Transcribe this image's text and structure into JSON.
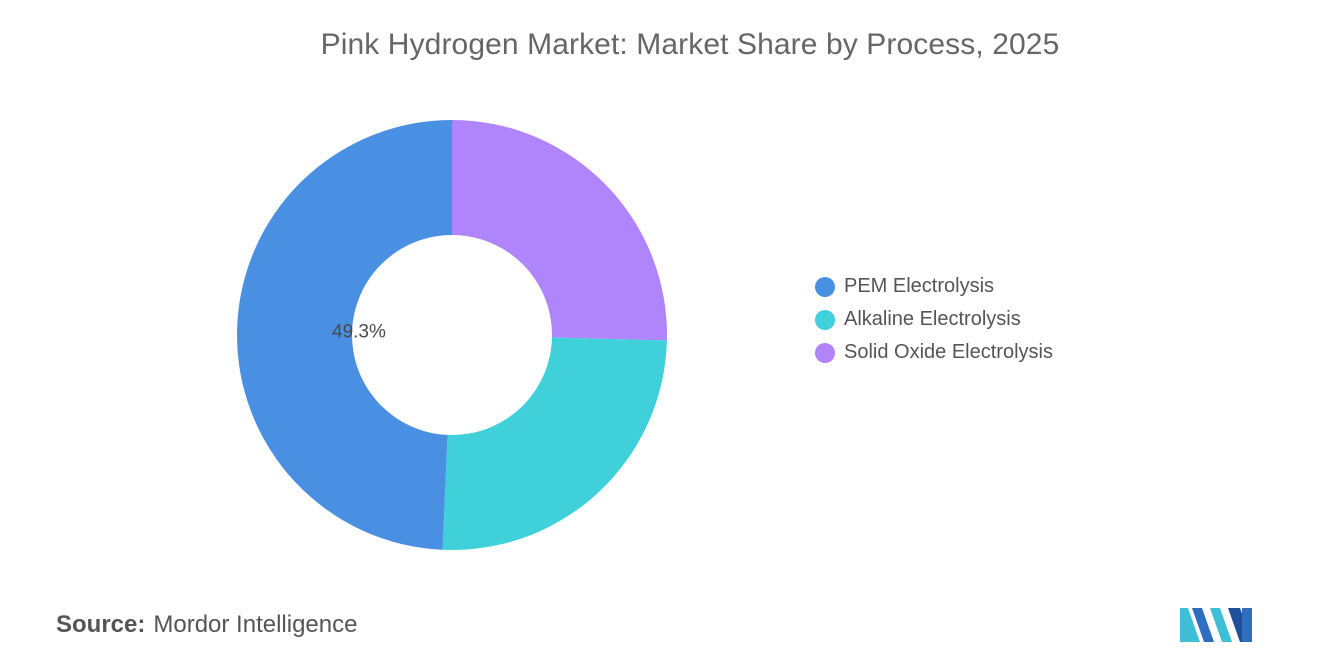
{
  "title": "Pink Hydrogen Market: Market Share by Process, 2025",
  "source": {
    "prefix": "Source:",
    "name": "Mordor Intelligence"
  },
  "logo": {
    "icon": "mordor-intelligence-logo-icon",
    "colors": [
      "#3fbfd6",
      "#2f6fbf",
      "#1e4f9a"
    ]
  },
  "chart_data": {
    "type": "pie",
    "donut": true,
    "series": [
      {
        "name": "PEM Electrolysis",
        "value": 49.3,
        "color": "#4a90e2",
        "label": "49.3%"
      },
      {
        "name": "Alkaline Electrolysis",
        "value": 25.3,
        "color": "#40d0da",
        "label": ""
      },
      {
        "name": "Solid Oxide Electrolysis",
        "value": 25.4,
        "color": "#b084fb",
        "label": ""
      }
    ],
    "start": "12 o'clock",
    "direction": "clockwise",
    "slice_order": [
      "Solid Oxide Electrolysis",
      "Alkaline Electrolysis",
      "PEM Electrolysis"
    ],
    "legend_position": "right"
  }
}
